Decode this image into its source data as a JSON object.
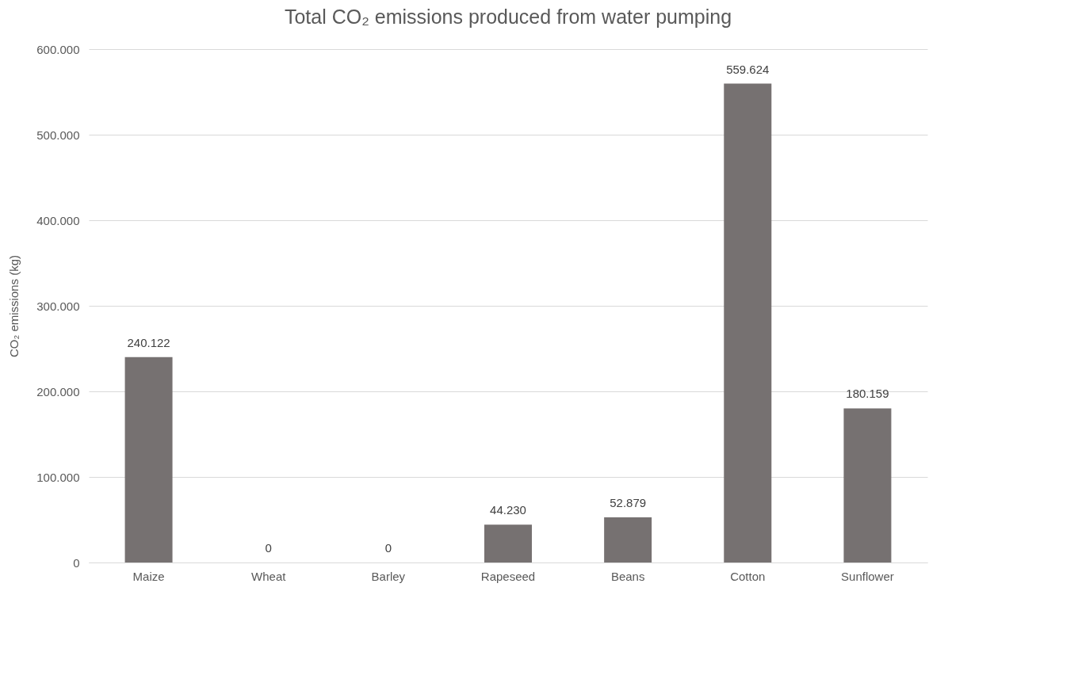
{
  "chart_data": {
    "type": "bar",
    "title": "Total  CO₂ emissions produced from water pumping",
    "ylabel": "CO₂ emissions (kg)",
    "categories": [
      "Maize",
      "Wheat",
      "Barley",
      "Rapeseed",
      "Beans",
      "Cotton",
      "Sunflower"
    ],
    "series": [
      {
        "color": "#767171",
        "values": [
          240122,
          0,
          0,
          44230,
          52879,
          559624,
          180159
        ],
        "value_labels": [
          "240.122",
          "0",
          "0",
          "44.230",
          "52.879",
          "559.624",
          "180.159"
        ]
      }
    ],
    "ylim": [
      0,
      600000
    ],
    "yticks": [
      0,
      {
        "value": 100000,
        "label": "100.000"
      },
      {
        "value": 200000,
        "label": "200.000"
      },
      {
        "value": 300000,
        "label": "300.000"
      },
      {
        "value": 400000,
        "label": "400.000"
      },
      {
        "value": 500000,
        "label": "500.000"
      },
      {
        "value": 600000,
        "label": "600.000"
      }
    ],
    "grid": "y"
  }
}
